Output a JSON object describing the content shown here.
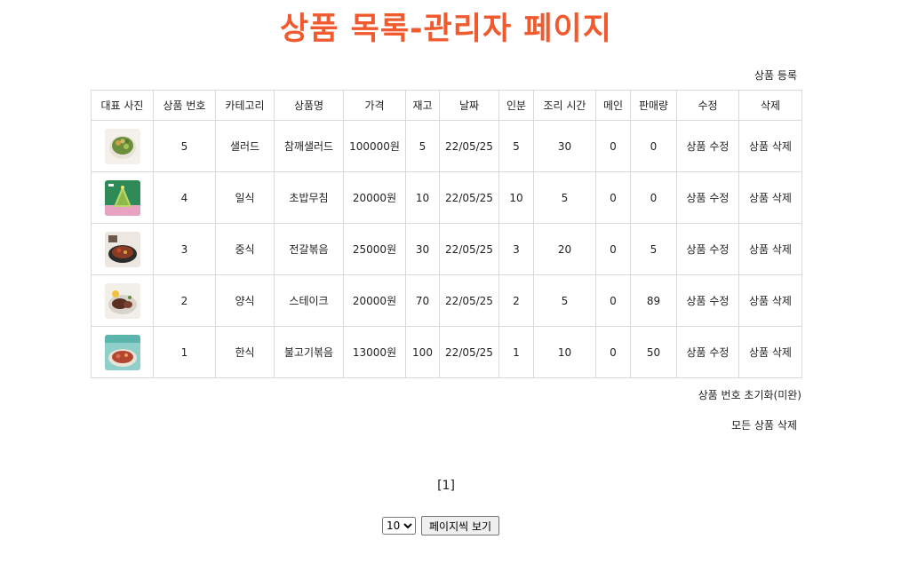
{
  "page": {
    "title": "상품 목록-관리자 페이지",
    "register_link": "상품 등록",
    "reset_number_link": "상품 번호 초기화(미완)",
    "delete_all_link": "모든 상품 삭제",
    "page_indicator": "[1]",
    "page_size": "10",
    "page_size_button": "페이지씩 보기"
  },
  "table": {
    "headers": [
      "대표 사진",
      "상품 번호",
      "카테고리",
      "상품명",
      "가격",
      "재고",
      "날짜",
      "인분",
      "조리 시간",
      "메인",
      "판매량",
      "수정",
      "삭제"
    ],
    "rows": [
      {
        "thumb": "salad-thumb",
        "no": "5",
        "category": "샐러드",
        "name": "참깨샐러드",
        "price": "100000원",
        "stock": "5",
        "date": "22/05/25",
        "servings": "5",
        "cook_time": "30",
        "main": "0",
        "sold": "0",
        "edit": "상품 수정",
        "delete": "상품 삭제"
      },
      {
        "thumb": "japanese-thumb",
        "no": "4",
        "category": "일식",
        "name": "초밥무침",
        "price": "20000원",
        "stock": "10",
        "date": "22/05/25",
        "servings": "10",
        "cook_time": "5",
        "main": "0",
        "sold": "0",
        "edit": "상품 수정",
        "delete": "상품 삭제"
      },
      {
        "thumb": "chinese-thumb",
        "no": "3",
        "category": "중식",
        "name": "전갈볶음",
        "price": "25000원",
        "stock": "30",
        "date": "22/05/25",
        "servings": "3",
        "cook_time": "20",
        "main": "0",
        "sold": "5",
        "edit": "상품 수정",
        "delete": "상품 삭제"
      },
      {
        "thumb": "steak-thumb",
        "no": "2",
        "category": "양식",
        "name": "스테이크",
        "price": "20000원",
        "stock": "70",
        "date": "22/05/25",
        "servings": "2",
        "cook_time": "5",
        "main": "0",
        "sold": "89",
        "edit": "상품 수정",
        "delete": "상품 삭제"
      },
      {
        "thumb": "bulgogi-thumb",
        "no": "1",
        "category": "한식",
        "name": "불고기볶음",
        "price": "13000원",
        "stock": "100",
        "date": "22/05/25",
        "servings": "1",
        "cook_time": "10",
        "main": "0",
        "sold": "50",
        "edit": "상품 수정",
        "delete": "상품 삭제"
      }
    ]
  },
  "colors": {
    "title": "#f05a2e",
    "border": "#d9d9d9"
  }
}
